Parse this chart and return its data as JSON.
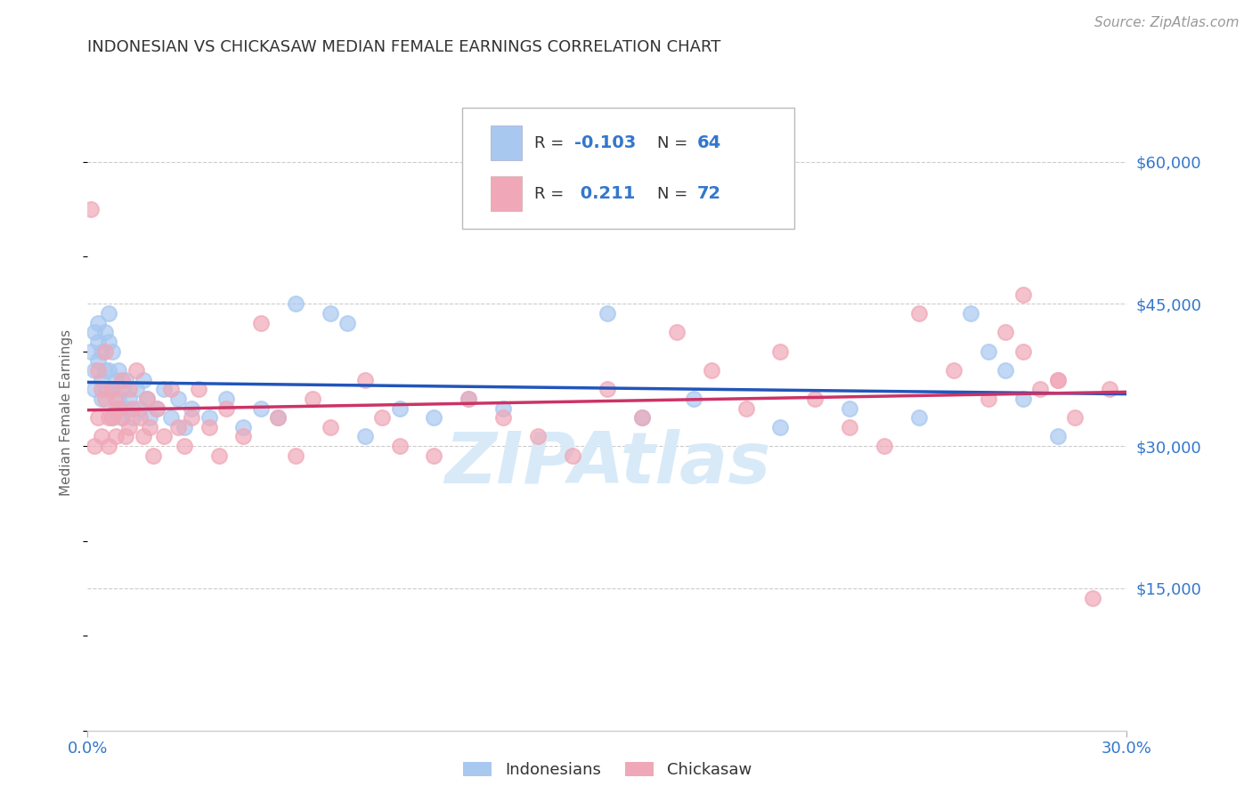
{
  "title": "INDONESIAN VS CHICKASAW MEDIAN FEMALE EARNINGS CORRELATION CHART",
  "source": "Source: ZipAtlas.com",
  "ylabel": "Median Female Earnings",
  "xlim": [
    0.0,
    0.3
  ],
  "ylim": [
    0,
    67000
  ],
  "yticks": [
    15000,
    30000,
    45000,
    60000
  ],
  "ytick_labels": [
    "$15,000",
    "$30,000",
    "$45,000",
    "$60,000"
  ],
  "xticks": [
    0.0,
    0.3
  ],
  "xtick_labels": [
    "0.0%",
    "30.0%"
  ],
  "indonesian_R": -0.103,
  "indonesian_N": 64,
  "chickasaw_R": 0.211,
  "chickasaw_N": 72,
  "indonesian_color": "#a8c8f0",
  "chickasaw_color": "#f0a8b8",
  "indonesian_line_color": "#2255bb",
  "chickasaw_line_color": "#cc3366",
  "title_color": "#333333",
  "axis_label_color": "#666666",
  "tick_color": "#3377cc",
  "source_color": "#999999",
  "background_color": "#ffffff",
  "watermark_color": "#d8eaf8",
  "grid_color": "#cccccc",
  "indonesian_x": [
    0.001,
    0.002,
    0.002,
    0.002,
    0.003,
    0.003,
    0.003,
    0.004,
    0.004,
    0.004,
    0.005,
    0.005,
    0.005,
    0.006,
    0.006,
    0.006,
    0.007,
    0.007,
    0.007,
    0.008,
    0.008,
    0.009,
    0.009,
    0.01,
    0.01,
    0.011,
    0.011,
    0.012,
    0.013,
    0.014,
    0.015,
    0.016,
    0.017,
    0.018,
    0.02,
    0.022,
    0.024,
    0.026,
    0.028,
    0.03,
    0.035,
    0.04,
    0.045,
    0.05,
    0.055,
    0.06,
    0.07,
    0.075,
    0.08,
    0.09,
    0.1,
    0.11,
    0.12,
    0.15,
    0.16,
    0.175,
    0.2,
    0.22,
    0.24,
    0.255,
    0.26,
    0.265,
    0.27,
    0.28
  ],
  "indonesian_y": [
    40000,
    42000,
    38000,
    36000,
    43000,
    41000,
    39000,
    40000,
    37000,
    35000,
    42000,
    38000,
    36000,
    44000,
    41000,
    38000,
    40000,
    36000,
    33000,
    37000,
    34000,
    38000,
    35000,
    36000,
    33000,
    37000,
    34000,
    35000,
    33000,
    36000,
    34000,
    37000,
    35000,
    33000,
    34000,
    36000,
    33000,
    35000,
    32000,
    34000,
    33000,
    35000,
    32000,
    34000,
    33000,
    45000,
    44000,
    43000,
    31000,
    34000,
    33000,
    35000,
    34000,
    44000,
    33000,
    35000,
    32000,
    34000,
    33000,
    44000,
    40000,
    38000,
    35000,
    31000
  ],
  "chickasaw_x": [
    0.001,
    0.002,
    0.003,
    0.003,
    0.004,
    0.004,
    0.005,
    0.005,
    0.006,
    0.006,
    0.007,
    0.007,
    0.008,
    0.008,
    0.009,
    0.01,
    0.01,
    0.011,
    0.012,
    0.012,
    0.013,
    0.014,
    0.015,
    0.016,
    0.017,
    0.018,
    0.019,
    0.02,
    0.022,
    0.024,
    0.026,
    0.028,
    0.03,
    0.032,
    0.035,
    0.038,
    0.04,
    0.045,
    0.05,
    0.055,
    0.06,
    0.065,
    0.07,
    0.08,
    0.085,
    0.09,
    0.1,
    0.11,
    0.12,
    0.13,
    0.14,
    0.15,
    0.16,
    0.17,
    0.18,
    0.19,
    0.2,
    0.21,
    0.22,
    0.23,
    0.24,
    0.25,
    0.26,
    0.265,
    0.27,
    0.275,
    0.28,
    0.285,
    0.29,
    0.295,
    0.28,
    0.27
  ],
  "chickasaw_y": [
    55000,
    30000,
    38000,
    33000,
    36000,
    31000,
    40000,
    35000,
    33000,
    30000,
    36000,
    33000,
    35000,
    31000,
    34000,
    37000,
    33000,
    31000,
    36000,
    32000,
    34000,
    38000,
    33000,
    31000,
    35000,
    32000,
    29000,
    34000,
    31000,
    36000,
    32000,
    30000,
    33000,
    36000,
    32000,
    29000,
    34000,
    31000,
    43000,
    33000,
    29000,
    35000,
    32000,
    37000,
    33000,
    30000,
    29000,
    35000,
    33000,
    31000,
    29000,
    36000,
    33000,
    42000,
    38000,
    34000,
    40000,
    35000,
    32000,
    30000,
    44000,
    38000,
    35000,
    42000,
    46000,
    36000,
    37000,
    33000,
    14000,
    36000,
    37000,
    40000
  ]
}
